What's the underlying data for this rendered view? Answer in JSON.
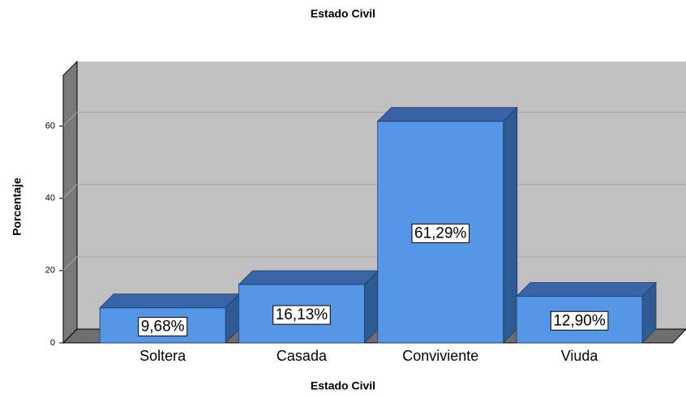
{
  "chart_data": {
    "type": "bar3d",
    "title": "Estado Civil",
    "x_label": "Estado Civil",
    "y_label": "Porcentaje",
    "categories": [
      "Soltera",
      "Casada",
      "Conviviente",
      "Viuda"
    ],
    "values": [
      9.68,
      16.13,
      61.29,
      12.9
    ],
    "value_labels": [
      "9,68%",
      "16,13%",
      "61,29%",
      "12,90%"
    ],
    "color": "#5596e6",
    "ylim": [
      0,
      74
    ],
    "yticks": [
      0,
      20,
      40,
      60
    ],
    "grid": true
  }
}
